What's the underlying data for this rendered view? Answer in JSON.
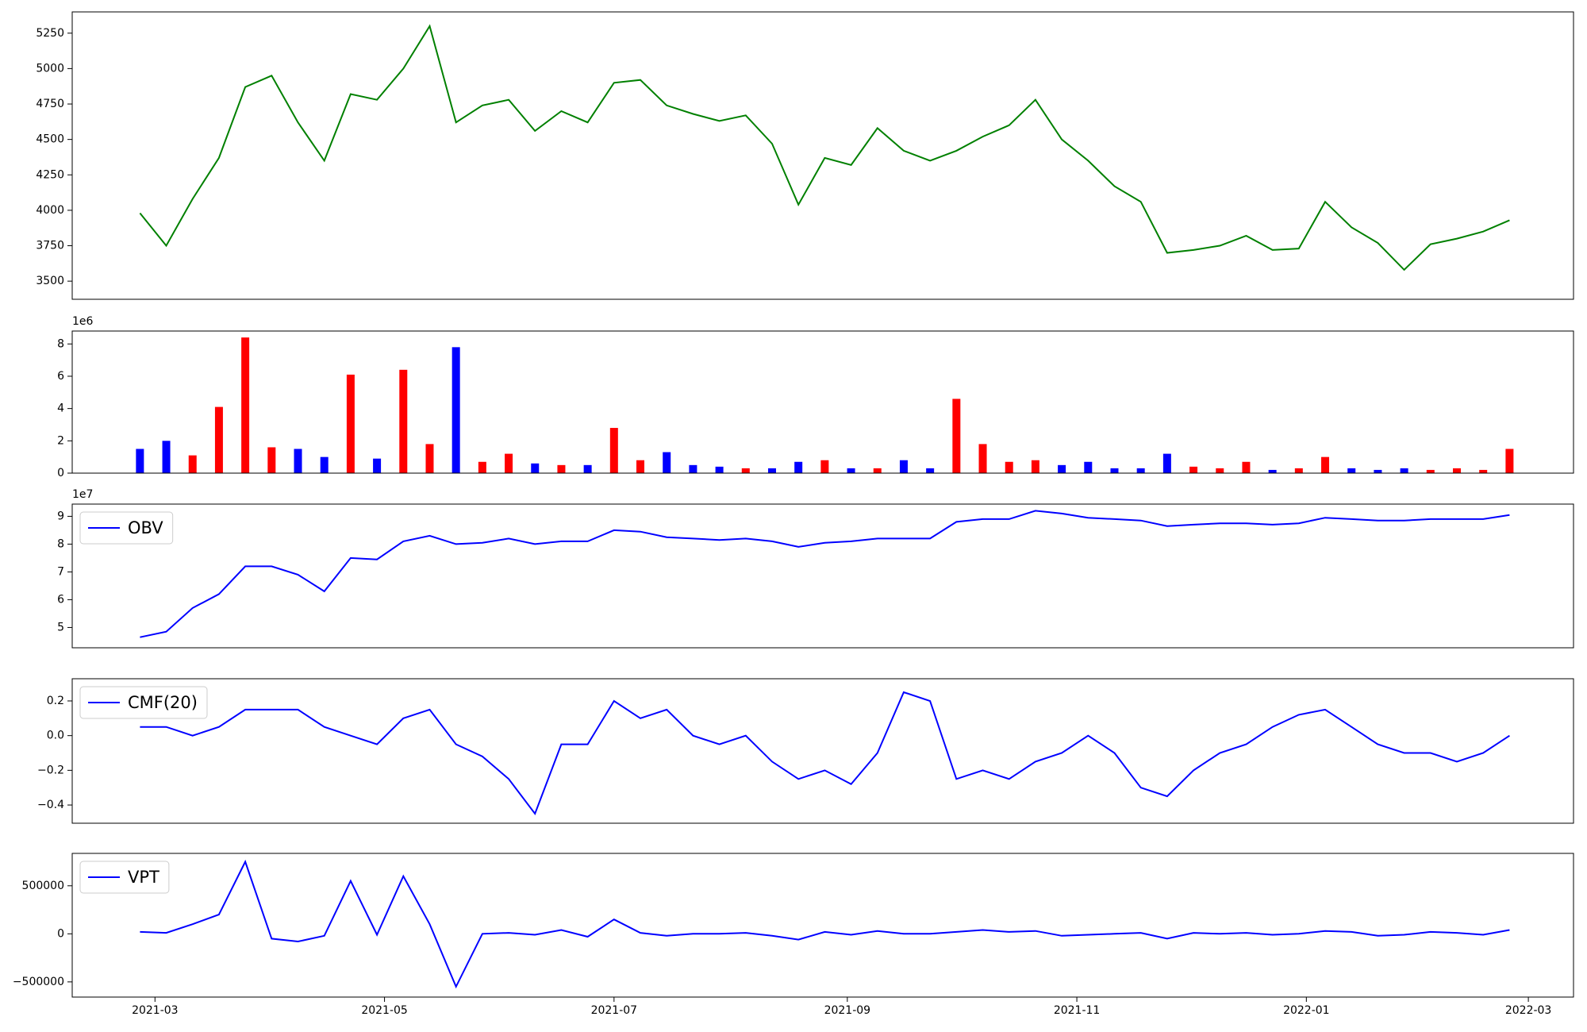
{
  "chart_data": [
    {
      "type": "line",
      "series": [
        {
          "color": "green",
          "values": [
            3980,
            3750,
            4080,
            4370,
            4870,
            4950,
            4620,
            4350,
            4820,
            4780,
            5000,
            5300,
            4620,
            4740,
            4780,
            4560,
            4700,
            4620,
            4900,
            4920,
            4740,
            4680,
            4630,
            4670,
            4470,
            4040,
            4370,
            4320,
            4580,
            4420,
            4350,
            4420,
            4520,
            4600,
            4780,
            4500,
            4350,
            4170,
            4060,
            3700,
            3720,
            3750,
            3820,
            3720,
            3730,
            4060,
            3880,
            3770,
            3580,
            3760,
            3800,
            3850,
            3930
          ]
        }
      ],
      "ylim": [
        3372,
        5400
      ],
      "yticks": [
        3500,
        3750,
        4000,
        4250,
        4500,
        4750,
        5000,
        5250
      ]
    },
    {
      "type": "bar",
      "values": [
        1.5,
        2.0,
        1.1,
        4.1,
        8.4,
        1.6,
        1.5,
        1.0,
        6.1,
        0.9,
        6.4,
        1.8,
        7.8,
        0.7,
        1.2,
        0.6,
        0.5,
        0.5,
        2.8,
        0.8,
        1.3,
        0.5,
        0.4,
        0.3,
        0.3,
        0.7,
        0.8,
        0.3,
        0.3,
        0.8,
        0.3,
        4.6,
        1.8,
        0.7,
        0.8,
        0.5,
        0.7,
        0.3,
        0.3,
        1.2,
        0.4,
        0.3,
        0.7,
        0.2,
        0.3,
        1.0,
        0.3,
        0.2,
        0.3,
        0.2,
        0.3,
        0.2,
        1.5
      ],
      "up_color": "red",
      "down_color": "blue",
      "flat_color": "black",
      "offset_label": "1e6",
      "ylim": [
        0,
        8.8
      ],
      "yticks": [
        0,
        2,
        4,
        6,
        8
      ]
    },
    {
      "type": "line",
      "series": [
        {
          "name": "OBV",
          "color": "blue",
          "values": [
            4.65,
            4.85,
            5.7,
            6.2,
            7.2,
            7.2,
            6.9,
            6.3,
            7.5,
            7.45,
            8.1,
            8.3,
            8.0,
            8.05,
            8.2,
            8.0,
            8.1,
            8.1,
            8.5,
            8.45,
            8.25,
            8.2,
            8.15,
            8.2,
            8.1,
            7.9,
            8.05,
            8.1,
            8.2,
            8.2,
            8.2,
            8.8,
            8.9,
            8.9,
            9.2,
            9.1,
            8.95,
            8.9,
            8.85,
            8.65,
            8.7,
            8.75,
            8.75,
            8.7,
            8.75,
            8.95,
            8.9,
            8.85,
            8.85,
            8.9,
            8.9,
            8.9,
            9.05
          ]
        }
      ],
      "offset_label": "1e7",
      "ylim": [
        4.27,
        9.44
      ],
      "yticks": [
        5,
        6,
        7,
        8,
        9
      ]
    },
    {
      "type": "line",
      "series": [
        {
          "name": "CMF(20)",
          "color": "blue",
          "values": [
            0.05,
            0.05,
            0.0,
            0.05,
            0.15,
            0.15,
            0.15,
            0.05,
            0.0,
            -0.05,
            0.1,
            0.15,
            -0.05,
            -0.12,
            -0.25,
            -0.45,
            -0.05,
            -0.05,
            0.2,
            0.1,
            0.15,
            0.0,
            -0.05,
            0.0,
            -0.15,
            -0.25,
            -0.2,
            -0.28,
            -0.1,
            0.25,
            0.2,
            -0.25,
            -0.2,
            -0.25,
            -0.15,
            -0.1,
            0.0,
            -0.1,
            -0.3,
            -0.35,
            -0.2,
            -0.1,
            -0.05,
            0.05,
            0.12,
            0.15,
            0.05,
            -0.05,
            -0.1,
            -0.1,
            -0.15,
            -0.1,
            0.0
          ]
        }
      ],
      "ylim": [
        -0.505,
        0.328
      ],
      "yticks": [
        {
          "value": -0.4,
          "label": "−0.4"
        },
        {
          "value": -0.2,
          "label": "−0.2"
        },
        {
          "value": 0,
          "label": "0.0"
        },
        0.2
      ]
    },
    {
      "type": "line",
      "series": [
        {
          "name": "VPT",
          "color": "blue",
          "values": [
            20000,
            10000,
            100000,
            200000,
            750000,
            -50000,
            -80000,
            -20000,
            550000,
            -10000,
            600000,
            100000,
            -550000,
            0,
            10000,
            -10000,
            40000,
            -30000,
            150000,
            10000,
            -20000,
            0,
            0,
            10000,
            -20000,
            -60000,
            20000,
            -10000,
            30000,
            0,
            0,
            20000,
            40000,
            20000,
            30000,
            -20000,
            -10000,
            0,
            10000,
            -50000,
            10000,
            0,
            10000,
            -10000,
            0,
            30000,
            20000,
            -20000,
            -10000,
            20000,
            10000,
            -10000,
            40000
          ]
        }
      ],
      "ylim": [
        -658000,
        837000
      ],
      "yticks": [
        {
          "value": -500000,
          "label": "−500000"
        },
        0,
        500000
      ],
      "x": [
        "2021-02-25",
        "2021-03-04",
        "2021-03-11",
        "2021-03-18",
        "2021-03-25",
        "2021-04-01",
        "2021-04-08",
        "2021-04-15",
        "2021-04-22",
        "2021-04-29",
        "2021-05-06",
        "2021-05-13",
        "2021-05-20",
        "2021-05-27",
        "2021-06-03",
        "2021-06-10",
        "2021-06-17",
        "2021-06-24",
        "2021-07-01",
        "2021-07-08",
        "2021-07-15",
        "2021-07-22",
        "2021-07-29",
        "2021-08-05",
        "2021-08-12",
        "2021-08-19",
        "2021-08-26",
        "2021-09-02",
        "2021-09-09",
        "2021-09-16",
        "2021-09-23",
        "2021-09-30",
        "2021-10-07",
        "2021-10-14",
        "2021-10-21",
        "2021-10-28",
        "2021-11-04",
        "2021-11-11",
        "2021-11-18",
        "2021-11-25",
        "2021-12-02",
        "2021-12-09",
        "2021-12-16",
        "2021-12-23",
        "2021-12-30",
        "2022-01-06",
        "2022-01-13",
        "2022-01-20",
        "2022-01-27",
        "2022-02-03",
        "2022-02-10",
        "2022-02-17",
        "2022-02-24"
      ],
      "xlim": [
        "2021-02-07",
        "2022-03-13"
      ],
      "xticks": [
        {
          "value": "2021-03-01",
          "label": "2021-03"
        },
        {
          "value": "2021-05-01",
          "label": "2021-05"
        },
        {
          "value": "2021-07-01",
          "label": "2021-07"
        },
        {
          "value": "2021-09-01",
          "label": "2021-09"
        },
        {
          "value": "2021-11-01",
          "label": "2021-11"
        },
        {
          "value": "2022-01-01",
          "label": "2022-01"
        },
        {
          "value": "2022-03-01",
          "label": "2022-03"
        }
      ]
    }
  ]
}
